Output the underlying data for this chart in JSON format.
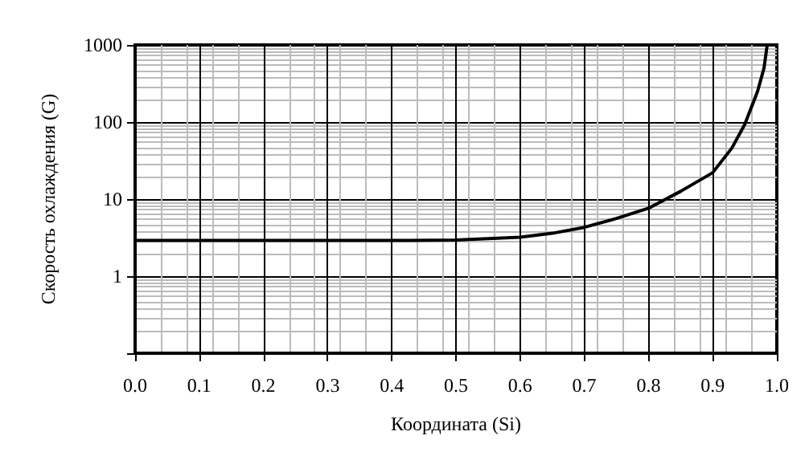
{
  "chart_data": {
    "type": "line",
    "xlabel": "Координата (Si)",
    "ylabel": "Скорость охлаждения (G)",
    "x": [
      0,
      0.1,
      0.2,
      0.3,
      0.4,
      0.5,
      0.6,
      0.65,
      0.7,
      0.75,
      0.8,
      0.85,
      0.9,
      0.93,
      0.95,
      0.97,
      0.98,
      0.985
    ],
    "series": [
      {
        "color": "#000000",
        "values": [
          2.9,
          2.9,
          2.9,
          2.9,
          2.9,
          2.95,
          3.2,
          3.6,
          4.3,
          5.6,
          7.6,
          12.6,
          22,
          46,
          93,
          250,
          500,
          1000
        ]
      }
    ],
    "xlim": [
      0,
      1
    ],
    "xticks": [
      {
        "value": 0,
        "label": "0.0"
      },
      0.1,
      0.2,
      0.3,
      0.4,
      0.5,
      0.6,
      0.7,
      0.8,
      0.9,
      {
        "value": 1,
        "label": "1.0"
      }
    ],
    "ylim": [
      0.1,
      1000
    ],
    "yticks": [
      {
        "value": 0.1,
        "label": null
      },
      1,
      10,
      100,
      1000
    ],
    "log": "y",
    "grid": true,
    "marker": "none",
    "line_style": "solid"
  }
}
